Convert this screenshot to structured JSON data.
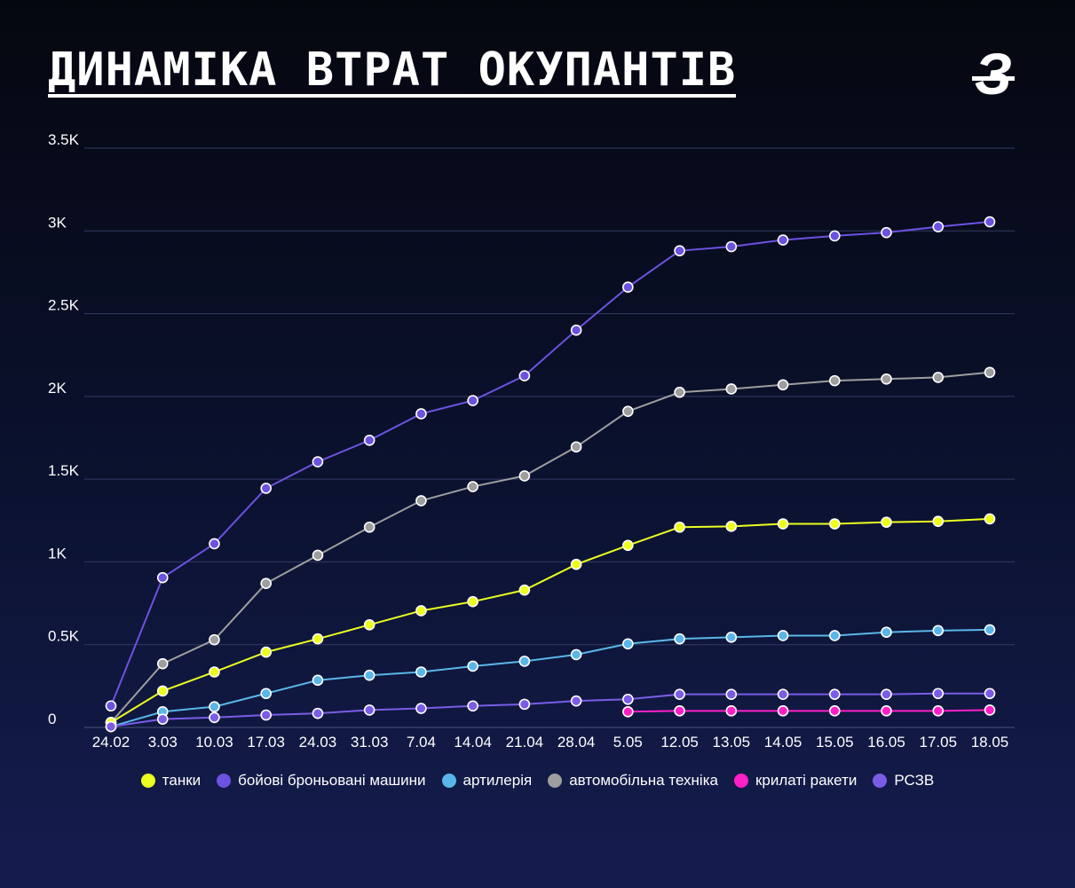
{
  "title": "ДИНАМІКА ВТРАТ ОКУПАНТІВ",
  "logo": {
    "glyph": "З",
    "icon": "publisher-logo"
  },
  "chart_data": {
    "type": "line",
    "title": "ДИНАМІКА ВТРАТ ОКУПАНТІВ",
    "xlabel": "",
    "ylabel": "",
    "ylim": [
      0,
      3500
    ],
    "y_ticks": [
      {
        "value": 0,
        "label": "0"
      },
      {
        "value": 500,
        "label": "0.5K"
      },
      {
        "value": 1000,
        "label": "1K"
      },
      {
        "value": 1500,
        "label": "1.5K"
      },
      {
        "value": 2000,
        "label": "2K"
      },
      {
        "value": 2500,
        "label": "2.5K"
      },
      {
        "value": 3000,
        "label": "3K"
      },
      {
        "value": 3500,
        "label": "3.5K"
      }
    ],
    "grid": true,
    "legend_position": "bottom",
    "categories": [
      "24.02",
      "3.03",
      "10.03",
      "17.03",
      "24.03",
      "31.03",
      "7.04",
      "14.04",
      "21.04",
      "28.04",
      "5.05",
      "12.05",
      "13.05",
      "14.05",
      "15.05",
      "16.05",
      "17.05",
      "18.05"
    ],
    "series": [
      {
        "name": "бойові броньовані машини",
        "color": "#6c52e0",
        "values": [
          130,
          905,
          1110,
          1445,
          1605,
          1735,
          1895,
          1975,
          2125,
          2400,
          2660,
          2880,
          2905,
          2945,
          2970,
          2990,
          3025,
          3055
        ]
      },
      {
        "name": "автомобільна техніка",
        "color": "#9e9e9e",
        "values": [
          30,
          385,
          530,
          870,
          1040,
          1210,
          1370,
          1455,
          1520,
          1695,
          1910,
          2025,
          2045,
          2070,
          2095,
          2105,
          2115,
          2145
        ]
      },
      {
        "name": "танки",
        "color": "#ecff1e",
        "values": [
          30,
          220,
          335,
          455,
          535,
          620,
          705,
          760,
          830,
          985,
          1100,
          1210,
          1215,
          1230,
          1230,
          1240,
          1245,
          1260
        ]
      },
      {
        "name": "артилерія",
        "color": "#5ab6e8",
        "values": [
          5,
          95,
          125,
          205,
          285,
          315,
          335,
          370,
          400,
          440,
          505,
          535,
          545,
          555,
          555,
          575,
          585,
          590
        ]
      },
      {
        "name": "РСЗВ",
        "color": "#7b5ce6",
        "values": [
          5,
          50,
          60,
          75,
          85,
          105,
          115,
          130,
          140,
          160,
          170,
          200,
          200,
          200,
          200,
          200,
          205,
          205
        ]
      },
      {
        "name": "крилаті ракети",
        "color": "#ff1fc8",
        "values": [
          null,
          null,
          null,
          null,
          null,
          null,
          null,
          null,
          null,
          null,
          95,
          100,
          100,
          100,
          100,
          100,
          100,
          105
        ]
      }
    ]
  },
  "legend": [
    {
      "label": "танки",
      "color": "#ecff1e"
    },
    {
      "label": "бойові броньовані машини",
      "color": "#6c52e0"
    },
    {
      "label": "артилерія",
      "color": "#5ab6e8"
    },
    {
      "label": "автомобільна техніка",
      "color": "#9e9e9e"
    },
    {
      "label": "крилаті ракети",
      "color": "#ff1fc8"
    },
    {
      "label": "РСЗВ",
      "color": "#7b5ce6"
    }
  ]
}
